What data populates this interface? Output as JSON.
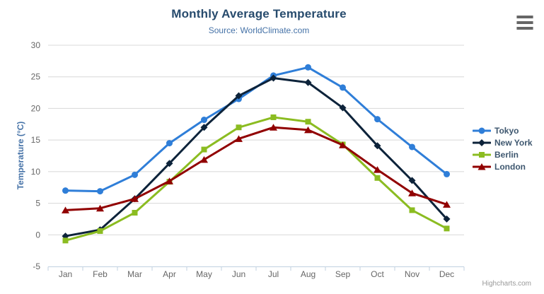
{
  "chart": {
    "title": "Monthly Average Temperature",
    "subtitle": "Source: WorldClimate.com",
    "credits": "Highcharts.com",
    "export_menu_icon": "hamburger-icon"
  },
  "chart_data": {
    "type": "line",
    "title": "Monthly Average Temperature",
    "subtitle": "Source: WorldClimate.com",
    "xlabel": "",
    "ylabel": "Temperature (°C)",
    "ylim": [
      -5,
      30
    ],
    "ytick_step": 5,
    "grid": true,
    "legend_position": "right",
    "categories": [
      "Jan",
      "Feb",
      "Mar",
      "Apr",
      "May",
      "Jun",
      "Jul",
      "Aug",
      "Sep",
      "Oct",
      "Nov",
      "Dec"
    ],
    "series": [
      {
        "name": "Tokyo",
        "color": "#2f7ed8",
        "marker": "circle",
        "values": [
          7.0,
          6.9,
          9.5,
          14.5,
          18.2,
          21.5,
          25.2,
          26.5,
          23.3,
          18.3,
          13.9,
          9.6
        ]
      },
      {
        "name": "New York",
        "color": "#0d233a",
        "marker": "diamond",
        "values": [
          -0.2,
          0.8,
          5.7,
          11.3,
          17.0,
          22.0,
          24.8,
          24.1,
          20.1,
          14.1,
          8.6,
          2.5
        ]
      },
      {
        "name": "Berlin",
        "color": "#8bbc21",
        "marker": "square",
        "values": [
          -0.9,
          0.6,
          3.5,
          8.4,
          13.5,
          17.0,
          18.6,
          17.9,
          14.3,
          9.0,
          3.9,
          1.0
        ]
      },
      {
        "name": "London",
        "color": "#910000",
        "marker": "triangle",
        "values": [
          3.9,
          4.2,
          5.7,
          8.5,
          11.9,
          15.2,
          17.0,
          16.6,
          14.2,
          10.3,
          6.6,
          4.8
        ]
      }
    ],
    "style": {
      "grid_color": "#d8d8d8",
      "axis_line_color": "#c0d0e0",
      "axis_label_color": "#666666",
      "title_color": "#274b6d",
      "subtitle_color": "#4572a7",
      "legend_text_color": "#3e576f",
      "credits_color": "#999999"
    }
  }
}
